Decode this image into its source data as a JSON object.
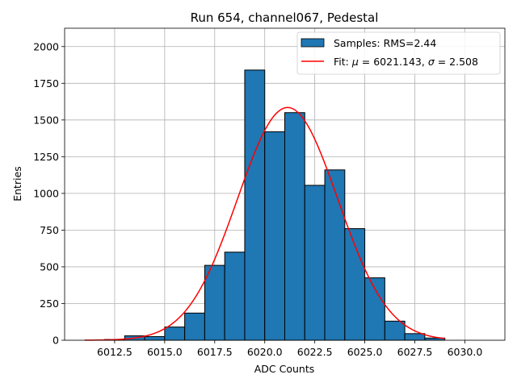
{
  "chart_data": {
    "type": "bar",
    "title": "Run 654, channel067, Pedestal",
    "xlabel": "ADC Counts",
    "ylabel": "Entries",
    "xlim": [
      6010.0,
      6032.0
    ],
    "ylim": [
      0,
      2125
    ],
    "grid": true,
    "legend_position": "top-right",
    "x_ticks": [
      6012.5,
      6015.0,
      6017.5,
      6020.0,
      6022.5,
      6025.0,
      6027.5,
      6030.0
    ],
    "x_tick_labels": [
      "6012.5",
      "6015.0",
      "6017.5",
      "6020.0",
      "6022.5",
      "6025.0",
      "6027.5",
      "6030.0"
    ],
    "y_ticks": [
      0,
      250,
      500,
      750,
      1000,
      1250,
      1500,
      1750,
      2000
    ],
    "y_tick_labels": [
      "0",
      "250",
      "500",
      "750",
      "1000",
      "1250",
      "1500",
      "1750",
      "2000"
    ],
    "histogram": {
      "name": "Samples: RMS=2.44",
      "color": "#1f77b4",
      "edge_color": "#000000",
      "bin_edges": [
        6011,
        6012,
        6013,
        6014,
        6015,
        6016,
        6017,
        6018,
        6019,
        6020,
        6021,
        6022,
        6023,
        6024,
        6025,
        6026,
        6027,
        6028,
        6029,
        6030,
        6031
      ],
      "counts": [
        0,
        5,
        30,
        25,
        90,
        185,
        510,
        600,
        1840,
        1420,
        1550,
        1055,
        1160,
        760,
        425,
        130,
        45,
        15,
        0,
        0
      ]
    },
    "fit": {
      "name_prefix": "Fit: ",
      "name_mu": "μ",
      "name_mid": " = 6021.143, ",
      "name_sigma": "σ",
      "name_suffix": " = 2.508",
      "color": "#ff0000",
      "mu": 6021.143,
      "sigma": 2.508,
      "amplitude": 1585,
      "x_range": [
        6011,
        6029
      ]
    }
  }
}
